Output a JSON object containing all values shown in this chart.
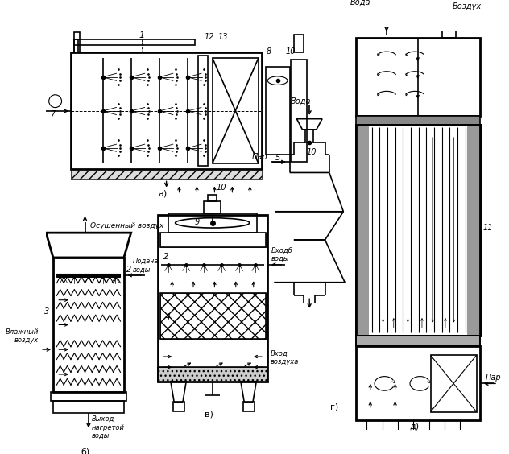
{
  "bg_color": "#ffffff",
  "line_color": "#000000",
  "fig_width": 6.32,
  "fig_height": 5.64,
  "labels": {
    "a": "а)",
    "b": "б)",
    "v": "в)",
    "g": "г)",
    "d": "д)",
    "voda": "Вода",
    "vozduh": "Воздух",
    "par": "Пар",
    "osush": "Осушенный воздух",
    "vlazh": "Влажный\nвоздух",
    "podacha": "Подача\nводы",
    "vyhod": "Выход\nнагретой\nводы",
    "vhod_vody": "Входб\nводы",
    "vhod_vozd": "Вход\nвоздуха"
  }
}
